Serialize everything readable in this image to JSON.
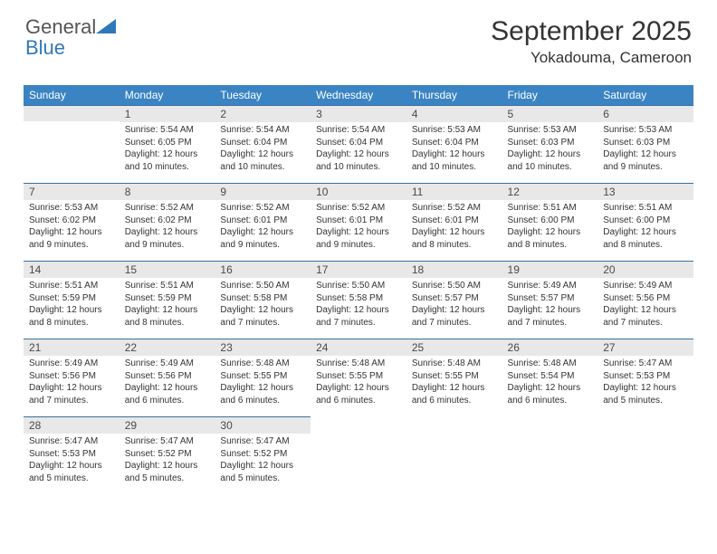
{
  "brand": {
    "line1": "General",
    "line2": "Blue"
  },
  "title": "September 2025",
  "location": "Yokadouma, Cameroon",
  "colors": {
    "header_bg": "#3a84c4",
    "header_text": "#ffffff",
    "daynum_bg": "#e8e8e8",
    "daynum_border": "#3a6fa0",
    "logo_gray": "#555555",
    "logo_blue": "#2f79b9"
  },
  "weekdays": [
    "Sunday",
    "Monday",
    "Tuesday",
    "Wednesday",
    "Thursday",
    "Friday",
    "Saturday"
  ],
  "grid_start_weekday": 1,
  "days": [
    {
      "n": 1,
      "sunrise": "5:54 AM",
      "sunset": "6:05 PM",
      "daylight": "12 hours and 10 minutes."
    },
    {
      "n": 2,
      "sunrise": "5:54 AM",
      "sunset": "6:04 PM",
      "daylight": "12 hours and 10 minutes."
    },
    {
      "n": 3,
      "sunrise": "5:54 AM",
      "sunset": "6:04 PM",
      "daylight": "12 hours and 10 minutes."
    },
    {
      "n": 4,
      "sunrise": "5:53 AM",
      "sunset": "6:04 PM",
      "daylight": "12 hours and 10 minutes."
    },
    {
      "n": 5,
      "sunrise": "5:53 AM",
      "sunset": "6:03 PM",
      "daylight": "12 hours and 10 minutes."
    },
    {
      "n": 6,
      "sunrise": "5:53 AM",
      "sunset": "6:03 PM",
      "daylight": "12 hours and 9 minutes."
    },
    {
      "n": 7,
      "sunrise": "5:53 AM",
      "sunset": "6:02 PM",
      "daylight": "12 hours and 9 minutes."
    },
    {
      "n": 8,
      "sunrise": "5:52 AM",
      "sunset": "6:02 PM",
      "daylight": "12 hours and 9 minutes."
    },
    {
      "n": 9,
      "sunrise": "5:52 AM",
      "sunset": "6:01 PM",
      "daylight": "12 hours and 9 minutes."
    },
    {
      "n": 10,
      "sunrise": "5:52 AM",
      "sunset": "6:01 PM",
      "daylight": "12 hours and 9 minutes."
    },
    {
      "n": 11,
      "sunrise": "5:52 AM",
      "sunset": "6:01 PM",
      "daylight": "12 hours and 8 minutes."
    },
    {
      "n": 12,
      "sunrise": "5:51 AM",
      "sunset": "6:00 PM",
      "daylight": "12 hours and 8 minutes."
    },
    {
      "n": 13,
      "sunrise": "5:51 AM",
      "sunset": "6:00 PM",
      "daylight": "12 hours and 8 minutes."
    },
    {
      "n": 14,
      "sunrise": "5:51 AM",
      "sunset": "5:59 PM",
      "daylight": "12 hours and 8 minutes."
    },
    {
      "n": 15,
      "sunrise": "5:51 AM",
      "sunset": "5:59 PM",
      "daylight": "12 hours and 8 minutes."
    },
    {
      "n": 16,
      "sunrise": "5:50 AM",
      "sunset": "5:58 PM",
      "daylight": "12 hours and 7 minutes."
    },
    {
      "n": 17,
      "sunrise": "5:50 AM",
      "sunset": "5:58 PM",
      "daylight": "12 hours and 7 minutes."
    },
    {
      "n": 18,
      "sunrise": "5:50 AM",
      "sunset": "5:57 PM",
      "daylight": "12 hours and 7 minutes."
    },
    {
      "n": 19,
      "sunrise": "5:49 AM",
      "sunset": "5:57 PM",
      "daylight": "12 hours and 7 minutes."
    },
    {
      "n": 20,
      "sunrise": "5:49 AM",
      "sunset": "5:56 PM",
      "daylight": "12 hours and 7 minutes."
    },
    {
      "n": 21,
      "sunrise": "5:49 AM",
      "sunset": "5:56 PM",
      "daylight": "12 hours and 7 minutes."
    },
    {
      "n": 22,
      "sunrise": "5:49 AM",
      "sunset": "5:56 PM",
      "daylight": "12 hours and 6 minutes."
    },
    {
      "n": 23,
      "sunrise": "5:48 AM",
      "sunset": "5:55 PM",
      "daylight": "12 hours and 6 minutes."
    },
    {
      "n": 24,
      "sunrise": "5:48 AM",
      "sunset": "5:55 PM",
      "daylight": "12 hours and 6 minutes."
    },
    {
      "n": 25,
      "sunrise": "5:48 AM",
      "sunset": "5:55 PM",
      "daylight": "12 hours and 6 minutes."
    },
    {
      "n": 26,
      "sunrise": "5:48 AM",
      "sunset": "5:54 PM",
      "daylight": "12 hours and 6 minutes."
    },
    {
      "n": 27,
      "sunrise": "5:47 AM",
      "sunset": "5:53 PM",
      "daylight": "12 hours and 5 minutes."
    },
    {
      "n": 28,
      "sunrise": "5:47 AM",
      "sunset": "5:53 PM",
      "daylight": "12 hours and 5 minutes."
    },
    {
      "n": 29,
      "sunrise": "5:47 AM",
      "sunset": "5:52 PM",
      "daylight": "12 hours and 5 minutes."
    },
    {
      "n": 30,
      "sunrise": "5:47 AM",
      "sunset": "5:52 PM",
      "daylight": "12 hours and 5 minutes."
    }
  ],
  "labels": {
    "sunrise": "Sunrise:",
    "sunset": "Sunset:",
    "daylight": "Daylight:"
  }
}
